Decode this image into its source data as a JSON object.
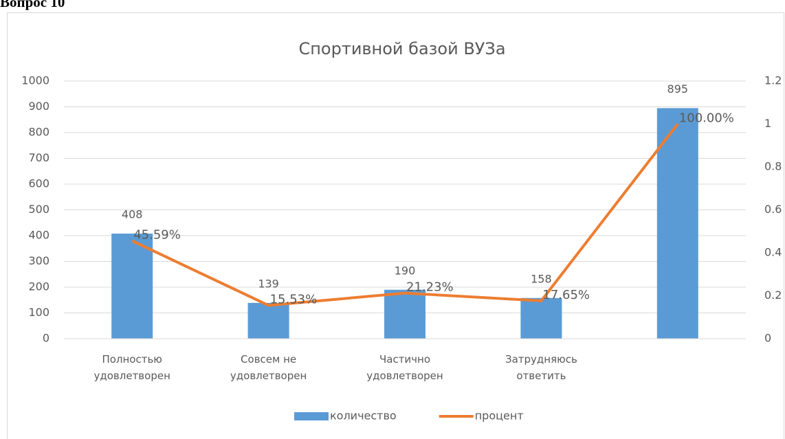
{
  "heading": "Вопрос 10",
  "chart_data": {
    "type": "bar",
    "title": "Спортивной  базой ВУЗа",
    "categories": [
      "Полностью удовлетворен",
      "Совсем не удовлетворен",
      "Частично удовлетворен",
      "Затрудняюсь ответить",
      null
    ],
    "series": [
      {
        "name": "количество",
        "type": "bar",
        "color": "#5b9bd5",
        "values": [
          408,
          139,
          190,
          158,
          895
        ]
      },
      {
        "name": "процент",
        "type": "line",
        "axis": "y2",
        "color": "#ed7d31",
        "values": [
          0.4559,
          0.1553,
          0.2123,
          0.1765,
          1.0
        ],
        "value_labels": [
          "45.59%",
          "15.53%",
          "21.23%",
          "17.65%",
          "100.00%"
        ]
      }
    ],
    "ylim": [
      0,
      1000
    ],
    "yticks": [
      0,
      100,
      200,
      300,
      400,
      500,
      600,
      700,
      800,
      900,
      1000
    ],
    "y2lim": [
      0,
      1.2
    ],
    "y2ticks": [
      0,
      0.2,
      0.4,
      0.6,
      0.8,
      1,
      1.2
    ],
    "grid": true,
    "legend": "bottom"
  }
}
